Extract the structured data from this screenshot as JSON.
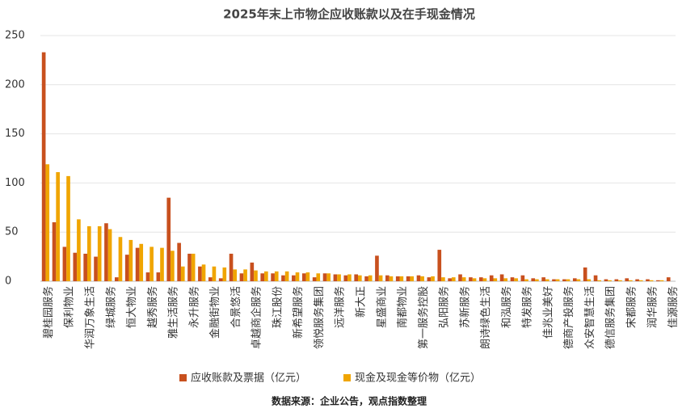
{
  "chart_data": {
    "type": "bar",
    "title": "2025年末上市物企应收账款以及在手现金情况",
    "source": "数据来源：企业公告，观点指数整理",
    "categories": [
      "碧桂园服务",
      null,
      "保利物业",
      null,
      "华润万象生活",
      null,
      "绿城服务",
      null,
      "恒大物业",
      null,
      "越秀服务",
      null,
      "雅生活服务",
      null,
      "永升服务",
      null,
      "金融街物业",
      null,
      "合景悠活",
      null,
      "卓越商企服务",
      null,
      "珠江股份",
      null,
      "新希望服务",
      null,
      "领悦服务集团",
      null,
      "远洋服务",
      null,
      "新大正",
      null,
      "星盛商业",
      null,
      "南都物业",
      null,
      "第一服务控股",
      null,
      "弘阳服务",
      null,
      "苏新服务",
      null,
      "朗诗绿色生活",
      null,
      "和泓服务",
      null,
      "特发服务",
      null,
      "佳兆业美好",
      null,
      "德商产投服务",
      null,
      "众安智慧生活",
      null,
      "德信服务集团",
      null,
      "宋都服务",
      null,
      "润华服务",
      null,
      "佳源服务"
    ],
    "series": [
      {
        "name": "应收账款及票据（亿元）",
        "color": "#c8501e",
        "values": [
          233,
          60,
          35,
          29,
          28,
          25,
          59,
          4,
          27,
          34,
          9,
          9,
          85,
          39,
          28,
          15,
          4,
          3,
          28,
          8,
          19,
          8,
          8,
          6,
          6,
          8,
          4,
          8,
          7,
          6,
          7,
          5,
          26,
          6,
          5,
          5,
          6,
          4,
          32,
          3,
          7,
          4,
          4,
          6,
          7,
          4,
          6,
          3,
          4,
          2,
          2,
          3,
          14,
          6,
          2,
          2,
          3,
          2,
          2,
          1,
          4
        ]
      },
      {
        "name": "现金及现金等价物（亿元）",
        "color": "#f0a500",
        "values": [
          119,
          111,
          107,
          63,
          56,
          56,
          53,
          45,
          42,
          38,
          35,
          34,
          31,
          15,
          28,
          17,
          15,
          14,
          12,
          12,
          11,
          10,
          10,
          10,
          9,
          9,
          8,
          8,
          7,
          7,
          6,
          6,
          6,
          5,
          5,
          5,
          5,
          5,
          4,
          4,
          4,
          3,
          3,
          3,
          3,
          3,
          2,
          2,
          2,
          2,
          2,
          2,
          2,
          1,
          1,
          1,
          1,
          1,
          1,
          1,
          0
        ]
      }
    ],
    "ylim": [
      0,
      250
    ],
    "yticks": [
      0,
      50,
      100,
      150,
      200,
      250
    ],
    "grid": true
  }
}
